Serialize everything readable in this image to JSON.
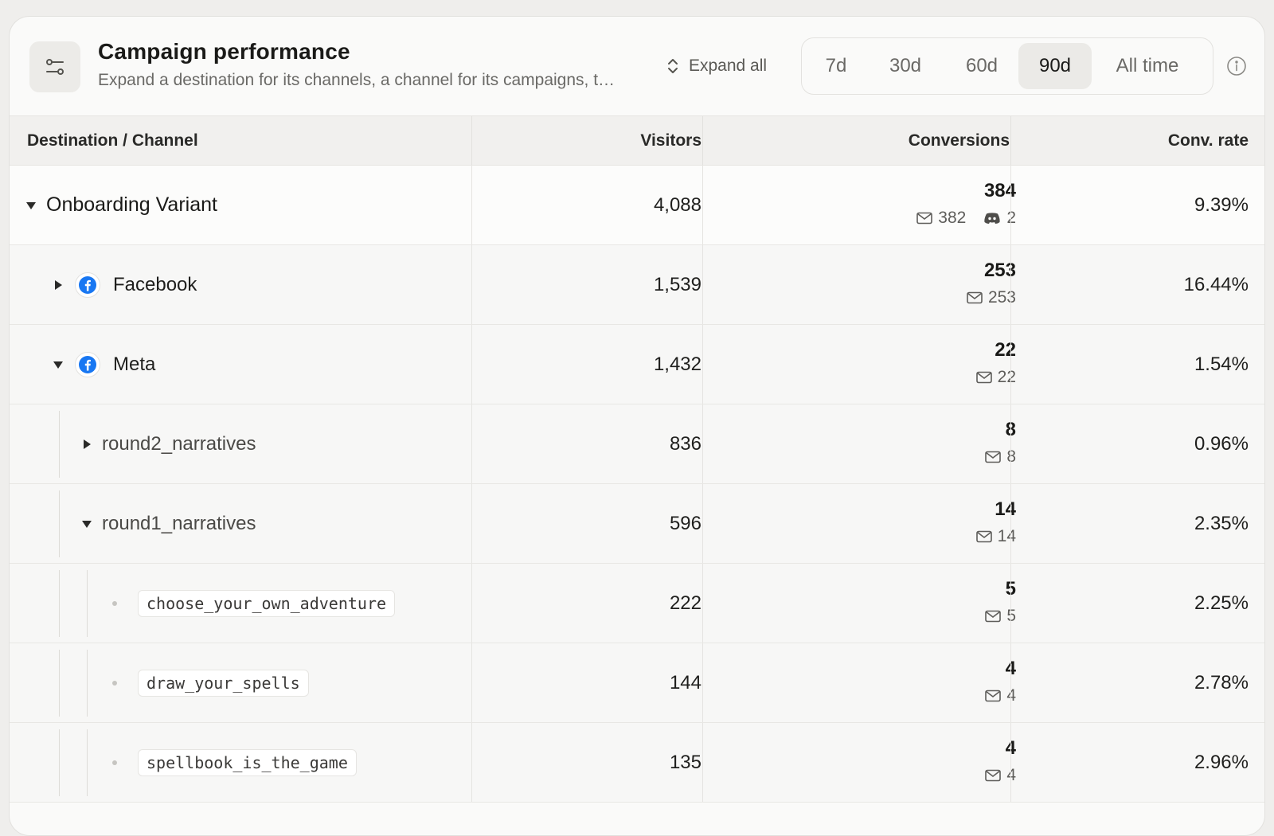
{
  "header": {
    "title": "Campaign performance",
    "subtitle": "Expand a destination for its channels, a channel for its campaigns, t…",
    "icon": "filter-sliders-icon",
    "expand_all_label": "Expand all",
    "ranges": [
      "7d",
      "30d",
      "60d",
      "90d",
      "All time"
    ],
    "active_range": "90d"
  },
  "columns": {
    "name": "Destination / Channel",
    "visitors": "Visitors",
    "conversions": "Conversions",
    "rate": "Conv. rate"
  },
  "rows": [
    {
      "kind": "destination",
      "label": "Onboarding Variant",
      "expanded": true,
      "visitors": "4,088",
      "conversions": "384",
      "email": "382",
      "discord": "2",
      "rate": "9.39%"
    },
    {
      "kind": "channel",
      "label": "Facebook",
      "expanded": false,
      "visitors": "1,539",
      "conversions": "253",
      "email": "253",
      "rate": "16.44%"
    },
    {
      "kind": "channel",
      "label": "Meta",
      "expanded": true,
      "visitors": "1,432",
      "conversions": "22",
      "email": "22",
      "rate": "1.54%"
    },
    {
      "kind": "campaign",
      "label": "round2_narratives",
      "expanded": false,
      "visitors": "836",
      "conversions": "8",
      "email": "8",
      "rate": "0.96%"
    },
    {
      "kind": "campaign",
      "label": "round1_narratives",
      "expanded": true,
      "visitors": "596",
      "conversions": "14",
      "email": "14",
      "rate": "2.35%"
    },
    {
      "kind": "creative",
      "label": "choose_your_own_adventure",
      "visitors": "222",
      "conversions": "5",
      "email": "5",
      "rate": "2.25%"
    },
    {
      "kind": "creative",
      "label": "draw_your_spells",
      "visitors": "144",
      "conversions": "4",
      "email": "4",
      "rate": "2.78%"
    },
    {
      "kind": "creative",
      "label": "spellbook_is_the_game",
      "visitors": "135",
      "conversions": "4",
      "email": "4",
      "rate": "2.96%"
    }
  ]
}
